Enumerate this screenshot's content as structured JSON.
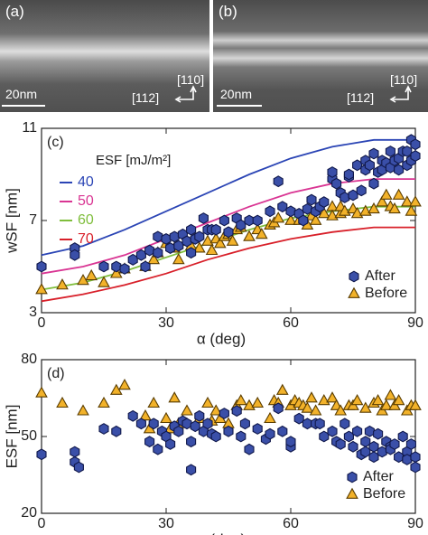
{
  "panel_a": {
    "label": "(a)",
    "scale": "20nm",
    "dir_up": "[110]",
    "dir_side": "[112]"
  },
  "panel_b": {
    "label": "(b)",
    "scale": "20nm",
    "dir_up": "[110]",
    "dir_side": "[112]"
  },
  "colors": {
    "after_fill": "#3a4fa8",
    "after_edge": "#10184a",
    "before_fill": "#f2b22a",
    "before_edge": "#5a3d00",
    "curve_40": "#2b45b5",
    "curve_50": "#d93593",
    "curve_60": "#7fbe3c",
    "curve_70": "#d8202a"
  },
  "chart_data": [
    {
      "panel": "(c)",
      "type": "scatter",
      "xlabel": "α (deg)",
      "ylabel": "wSF [nm]",
      "xlim": [
        0,
        90
      ],
      "ylim": [
        3,
        11
      ],
      "xticks": [
        0,
        30,
        60,
        90
      ],
      "yticks": [
        3,
        7,
        11
      ],
      "legend_title": "ESF [mJ/m²]",
      "curves": [
        {
          "name": "40",
          "color_key": "curve_40",
          "x": [
            0,
            10,
            20,
            30,
            40,
            50,
            60,
            70,
            80,
            90
          ],
          "y": [
            5.5,
            5.9,
            6.6,
            7.4,
            8.2,
            9.0,
            9.7,
            10.2,
            10.5,
            10.5
          ]
        },
        {
          "name": "50",
          "color_key": "curve_50",
          "x": [
            0,
            10,
            20,
            30,
            40,
            50,
            60,
            70,
            80,
            90
          ],
          "y": [
            4.7,
            5.0,
            5.5,
            6.2,
            6.9,
            7.6,
            8.2,
            8.6,
            8.8,
            8.8
          ]
        },
        {
          "name": "60",
          "color_key": "curve_60",
          "x": [
            0,
            10,
            20,
            30,
            40,
            50,
            60,
            70,
            80,
            90
          ],
          "y": [
            4.0,
            4.3,
            4.8,
            5.4,
            6.0,
            6.6,
            7.1,
            7.4,
            7.6,
            7.6
          ]
        },
        {
          "name": "70",
          "color_key": "curve_70",
          "x": [
            0,
            10,
            20,
            30,
            40,
            50,
            60,
            70,
            80,
            90
          ],
          "y": [
            3.5,
            3.8,
            4.2,
            4.7,
            5.3,
            5.8,
            6.2,
            6.5,
            6.7,
            6.7
          ]
        }
      ],
      "series": [
        {
          "name": "After",
          "marker": "hexagon",
          "x": [
            0,
            8,
            8,
            15,
            18,
            20,
            22,
            24,
            25,
            26,
            28,
            28,
            30,
            31,
            32,
            33,
            34,
            35,
            36,
            36,
            37,
            38,
            39,
            40,
            41,
            42,
            44,
            45,
            47,
            48,
            50,
            52,
            55,
            57,
            58,
            60,
            62,
            63,
            64,
            65,
            66,
            67,
            68,
            70,
            70,
            71,
            72,
            73,
            74,
            74,
            75,
            76,
            77,
            78,
            78,
            79,
            80,
            80,
            81,
            82,
            82,
            83,
            84,
            84,
            85,
            86,
            86,
            87,
            88,
            88,
            89,
            89,
            90,
            90
          ],
          "y": [
            5.0,
            5.8,
            5.5,
            5.0,
            5.0,
            4.9,
            5.3,
            5.5,
            5.0,
            5.7,
            5.6,
            6.3,
            6.2,
            5.8,
            6.3,
            5.9,
            6.4,
            6.1,
            5.6,
            6.6,
            6.2,
            6.3,
            7.1,
            6.6,
            6.6,
            6.6,
            7.0,
            6.5,
            7.1,
            6.8,
            7.0,
            7.0,
            7.4,
            8.7,
            7.6,
            7.4,
            7.3,
            7.0,
            7.5,
            7.9,
            7.4,
            7.6,
            7.8,
            8.8,
            9.1,
            8.6,
            8.2,
            8.0,
            8.9,
            9.0,
            8.1,
            9.4,
            8.3,
            9.6,
            9.2,
            9.4,
            8.6,
            9.9,
            9.1,
            9.6,
            9.2,
            9.5,
            10.0,
            9.3,
            9.6,
            9.2,
            9.7,
            10.0,
            9.4,
            10.0,
            9.6,
            10.5,
            9.8,
            10.3
          ]
        },
        {
          "name": "Before",
          "marker": "triangle",
          "x": [
            0,
            5,
            10,
            12,
            15,
            18,
            20,
            25,
            27,
            28,
            30,
            32,
            33,
            35,
            36,
            38,
            40,
            41,
            42,
            43,
            44,
            45,
            46,
            47,
            48,
            50,
            52,
            53,
            55,
            56,
            57,
            60,
            62,
            64,
            65,
            66,
            68,
            70,
            70,
            72,
            72,
            73,
            75,
            76,
            78,
            80,
            82,
            83,
            84,
            85,
            86,
            88,
            89,
            90
          ],
          "y": [
            4.0,
            4.2,
            4.4,
            4.6,
            4.3,
            4.7,
            4.9,
            5.0,
            5.3,
            5.6,
            6.0,
            5.8,
            5.3,
            6.1,
            5.9,
            5.8,
            6.1,
            5.7,
            6.2,
            6.0,
            6.3,
            6.4,
            6.1,
            6.6,
            6.7,
            6.3,
            6.6,
            6.4,
            6.8,
            6.9,
            7.1,
            7.0,
            7.0,
            6.8,
            7.2,
            7.0,
            7.3,
            7.6,
            7.2,
            7.3,
            7.6,
            7.4,
            7.5,
            7.3,
            7.4,
            7.5,
            7.8,
            8.1,
            7.6,
            7.5,
            8.1,
            7.8,
            7.4,
            7.8
          ]
        }
      ],
      "legend": [
        "After",
        "Before"
      ]
    },
    {
      "panel": "(d)",
      "type": "scatter",
      "xlabel": "α (deg)",
      "ylabel": "ESF [nm]",
      "xlim": [
        0,
        90
      ],
      "ylim": [
        20,
        80
      ],
      "xticks": [
        0,
        30,
        60,
        90
      ],
      "yticks": [
        20,
        50,
        80
      ],
      "series": [
        {
          "name": "After",
          "marker": "hexagon",
          "x": [
            0,
            8,
            8,
            9,
            15,
            18,
            22,
            24,
            26,
            27,
            28,
            29,
            30,
            31,
            32,
            33,
            34,
            35,
            36,
            36,
            37,
            38,
            39,
            40,
            41,
            42,
            44,
            45,
            47,
            48,
            49,
            50,
            52,
            54,
            55,
            57,
            58,
            60,
            60,
            62,
            64,
            66,
            67,
            68,
            70,
            71,
            72,
            73,
            74,
            75,
            76,
            77,
            78,
            78,
            79,
            80,
            80,
            81,
            82,
            83,
            84,
            84,
            85,
            86,
            87,
            88,
            88,
            89,
            90,
            90
          ],
          "y": [
            43,
            44,
            40,
            38,
            53,
            52,
            58,
            55,
            48,
            55,
            45,
            52,
            50,
            47,
            54,
            52,
            56,
            55,
            37,
            48,
            54,
            58,
            52,
            55,
            51,
            50,
            59,
            52,
            60,
            50,
            55,
            45,
            53,
            49,
            51,
            61,
            52,
            46,
            48,
            57,
            55,
            55,
            55,
            50,
            52,
            48,
            47,
            55,
            50,
            46,
            52,
            43,
            48,
            44,
            52,
            46,
            42,
            51,
            44,
            48,
            46,
            45,
            47,
            42,
            50,
            44,
            41,
            47,
            42,
            38
          ]
        },
        {
          "name": "Before",
          "marker": "triangle",
          "x": [
            0,
            5,
            10,
            15,
            18,
            20,
            25,
            26,
            27,
            30,
            31,
            32,
            33,
            34,
            35,
            38,
            40,
            41,
            42,
            43,
            45,
            47,
            48,
            50,
            52,
            55,
            56,
            57,
            58,
            60,
            61,
            62,
            63,
            64,
            65,
            66,
            68,
            70,
            71,
            72,
            74,
            75,
            76,
            78,
            80,
            81,
            82,
            83,
            84,
            85,
            86,
            88,
            89,
            90
          ],
          "y": [
            67,
            63,
            60,
            63,
            68,
            70,
            58,
            53,
            63,
            57,
            53,
            65,
            55,
            56,
            60,
            57,
            63,
            56,
            60,
            57,
            55,
            62,
            64,
            62,
            63,
            57,
            64,
            63,
            68,
            62,
            64,
            63,
            62,
            61,
            65,
            60,
            64,
            65,
            62,
            60,
            62,
            62,
            64,
            61,
            63,
            64,
            60,
            62,
            66,
            62,
            64,
            60,
            62,
            62
          ]
        }
      ],
      "legend": [
        "After",
        "Before"
      ]
    }
  ]
}
